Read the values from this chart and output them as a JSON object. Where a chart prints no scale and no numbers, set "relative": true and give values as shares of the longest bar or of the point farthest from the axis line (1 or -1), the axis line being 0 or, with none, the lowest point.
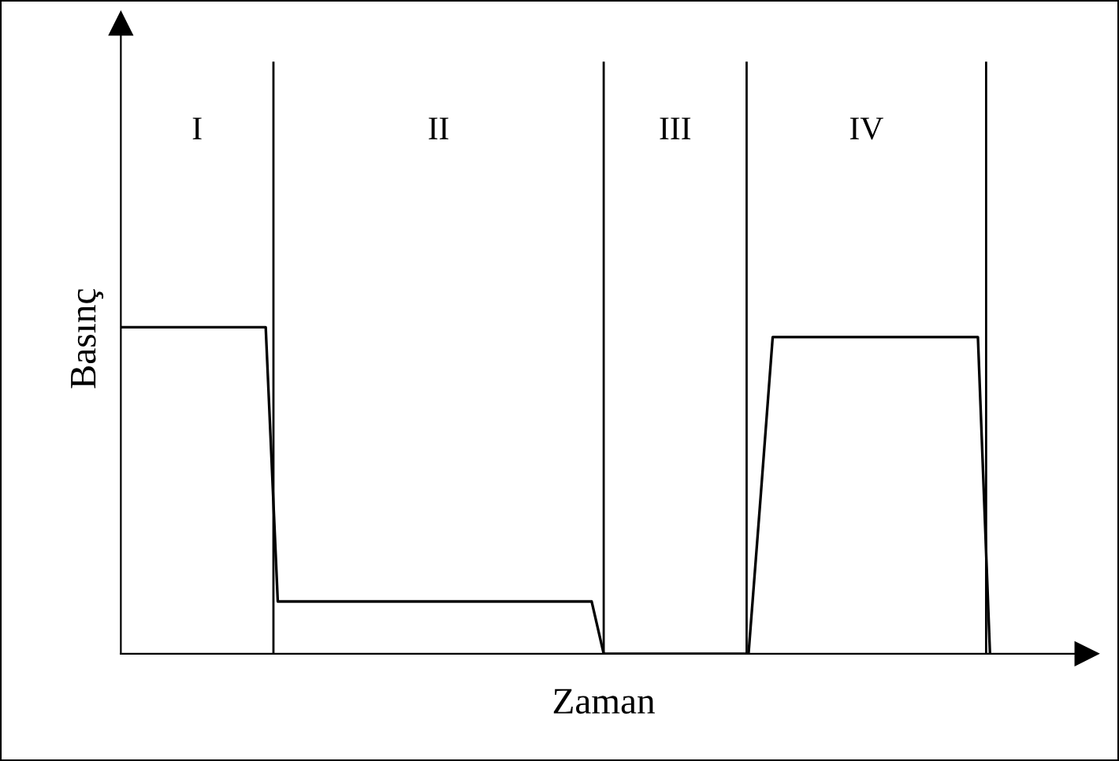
{
  "chart_data": {
    "type": "line",
    "relative": true,
    "xlabel": "Zaman",
    "ylabel": "Basınç",
    "color": "#000000",
    "line_style": "solid",
    "categories": [
      null,
      null,
      null,
      null,
      null,
      null,
      null,
      null,
      null,
      null,
      null,
      null,
      null,
      null,
      null,
      null,
      null,
      null,
      null,
      null,
      null,
      null,
      null,
      null,
      null,
      null,
      null,
      null,
      null,
      null,
      null,
      null,
      null,
      null,
      null,
      null,
      null,
      null,
      null,
      null,
      null,
      null,
      null,
      null,
      null,
      null,
      null,
      null,
      null,
      null,
      null,
      null,
      null,
      null,
      null,
      null,
      null,
      null,
      null,
      null,
      null,
      null,
      null,
      null,
      null,
      null,
      null,
      null,
      null,
      null,
      null,
      null,
      null,
      null,
      null,
      null,
      null,
      null,
      null,
      null,
      null
    ],
    "values": [
      1,
      1,
      1,
      1,
      1,
      1,
      1,
      1,
      1,
      1,
      1,
      1,
      1,
      0.16,
      0.16,
      0.16,
      0.16,
      0.16,
      0.16,
      0.16,
      0.16,
      0.16,
      0.16,
      0.16,
      0.16,
      0.16,
      0.16,
      0.16,
      0.16,
      0.16,
      0.16,
      0.16,
      0.16,
      0.16,
      0.16,
      0.16,
      0.16,
      0.16,
      0.16,
      0.16,
      0,
      0,
      0,
      0,
      0,
      0,
      0,
      0,
      0,
      0,
      0,
      0,
      0,
      0.48,
      0.97,
      0.97,
      0.97,
      0.97,
      0.97,
      0.97,
      0.97,
      0.97,
      0.97,
      0.97,
      0.97,
      0.97,
      0.97,
      0.97,
      0.97,
      0.97,
      0.97,
      0.97,
      0,
      null,
      null,
      null,
      null,
      null,
      null,
      null,
      null
    ],
    "annotations": [
      "I",
      "II",
      "III",
      "IV"
    ]
  }
}
